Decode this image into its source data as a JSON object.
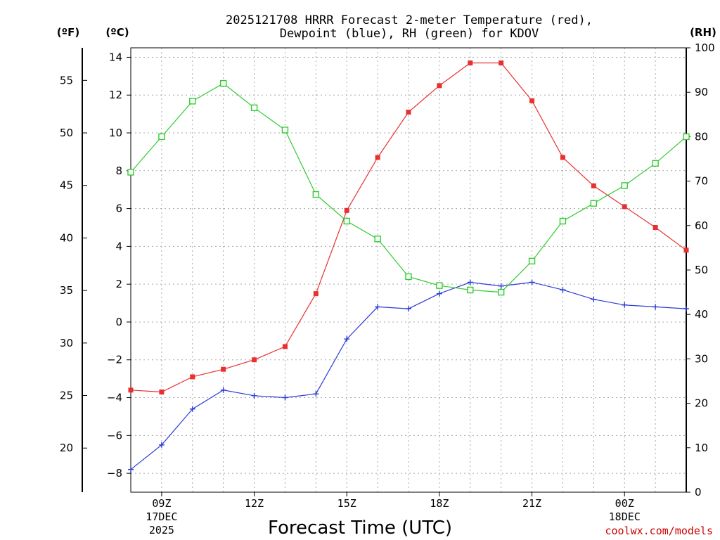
{
  "chart_data": {
    "type": "line",
    "title": [
      "2025121708 HRRR Forecast 2-meter Temperature (red),",
      "Dewpoint (blue), RH (green) for KDOV"
    ],
    "xlabel": "Forecast Time (UTC)",
    "credit": "coolwx.com/models",
    "units": {
      "fahrenheit": "(ºF)",
      "celsius": "(ºC)",
      "rh": "(RH)"
    },
    "x": [
      8,
      9,
      10,
      11,
      12,
      13,
      14,
      15,
      16,
      17,
      18,
      19,
      20,
      21,
      22,
      23,
      24,
      25,
      26
    ],
    "xlim": [
      8,
      26
    ],
    "x_ticks": [
      {
        "x": 9,
        "lines": [
          "09Z",
          "17DEC",
          "2025"
        ]
      },
      {
        "x": 12,
        "lines": [
          "12Z"
        ]
      },
      {
        "x": 15,
        "lines": [
          "15Z"
        ]
      },
      {
        "x": 18,
        "lines": [
          "18Z"
        ]
      },
      {
        "x": 21,
        "lines": [
          "21Z"
        ]
      },
      {
        "x": 24,
        "lines": [
          "00Z",
          "18DEC"
        ]
      }
    ],
    "celsius_axis": {
      "ylim": [
        -9,
        14.5
      ],
      "ticks": [
        14,
        12,
        10,
        8,
        6,
        4,
        2,
        0,
        -2,
        -4,
        -6,
        -8
      ],
      "labels": [
        "14",
        "12",
        "10",
        "8",
        "6",
        "4",
        "2",
        "0",
        "−2",
        "−4",
        "−6",
        "−8"
      ]
    },
    "fahrenheit_axis": {
      "ticks": [
        55,
        50,
        45,
        40,
        35,
        30,
        25,
        20
      ],
      "labels": [
        "55",
        "50",
        "45",
        "40",
        "35",
        "30",
        "25",
        "20"
      ]
    },
    "rh_axis": {
      "ylim": [
        0,
        100
      ],
      "ticks": [
        100,
        90,
        80,
        70,
        60,
        50,
        40,
        30,
        20,
        10,
        0
      ],
      "labels": [
        "100",
        "90",
        "80",
        "70",
        "60",
        "50",
        "40",
        "30",
        "20",
        "10",
        "0"
      ]
    },
    "series": [
      {
        "name": "2-meter Temperature",
        "axis": "celsius",
        "color": "#e83030",
        "marker": "filled-square",
        "values": [
          -3.6,
          -3.7,
          -2.9,
          -2.5,
          -2.0,
          -1.3,
          1.5,
          5.9,
          8.7,
          11.1,
          12.5,
          13.7,
          13.7,
          11.7,
          8.7,
          7.2,
          6.1,
          5.0,
          3.8
        ]
      },
      {
        "name": "Dewpoint",
        "axis": "celsius",
        "color": "#2b3bd6",
        "marker": "plus",
        "values": [
          -7.8,
          -6.5,
          -4.6,
          -3.6,
          -3.9,
          -4.0,
          -3.8,
          -0.9,
          0.8,
          0.7,
          1.5,
          2.1,
          1.9,
          2.1,
          1.7,
          1.2,
          0.9,
          0.8,
          0.7
        ]
      },
      {
        "name": "RH",
        "axis": "rh",
        "color": "#2fcc2f",
        "marker": "open-square",
        "values": [
          72,
          80,
          88,
          92,
          86.5,
          81.5,
          67,
          61,
          57,
          48.5,
          46.5,
          45.5,
          45,
          52,
          61,
          65,
          69,
          74,
          80
        ]
      }
    ]
  }
}
